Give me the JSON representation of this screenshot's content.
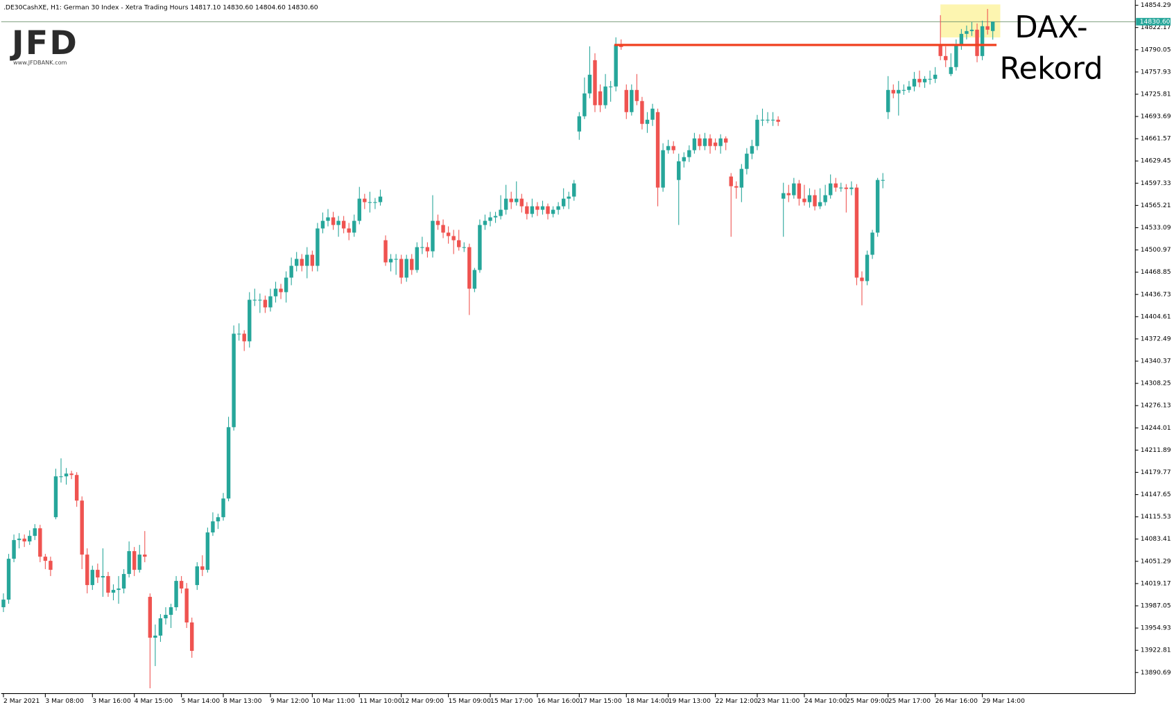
{
  "chart_data": {
    "type": "candlestick",
    "header": ".DE30CashXE, H1:  German 30 Index  - Xetra Trading Hours  14817.10 14830.60 14804.60 14830.60",
    "logo": "JFD",
    "logo_site": "www.JFDBANK.com",
    "annotation": [
      "DAX-",
      "Rekord"
    ],
    "last_price_label": "14830.60",
    "level": 14797,
    "level_color": "#f0401f",
    "highlight_color": "#fdf5b0",
    "up_color": "#26a69a",
    "down_color": "#ef5350",
    "ylim": [
      13860.4,
      14861.9
    ],
    "yticks": [
      14854.29,
      14822.17,
      14790.05,
      14757.93,
      14725.81,
      14693.69,
      14661.57,
      14629.45,
      14597.33,
      14565.21,
      14533.09,
      14500.97,
      14468.85,
      14436.73,
      14404.61,
      14372.49,
      14340.37,
      14308.25,
      14276.13,
      14244.01,
      14211.89,
      14179.77,
      14147.65,
      14115.53,
      14083.41,
      14051.29,
      14019.17,
      13987.05,
      13954.93,
      13922.81,
      13890.69
    ],
    "categories": [
      "2 Mar 2021",
      null,
      null,
      null,
      null,
      null,
      null,
      null,
      "3 Mar 08:00",
      null,
      null,
      null,
      null,
      null,
      null,
      null,
      null,
      "3 Mar 16:00",
      null,
      null,
      null,
      null,
      null,
      null,
      null,
      "4 Mar 15:00",
      null,
      null,
      null,
      null,
      null,
      null,
      null,
      null,
      "5 Mar 14:00",
      null,
      null,
      null,
      null,
      null,
      null,
      null,
      "8 Mar 13:00",
      null,
      null,
      null,
      null,
      null,
      null,
      null,
      null,
      "9 Mar 12:00",
      null,
      null,
      null,
      null,
      null,
      null,
      null,
      "10 Mar 11:00",
      null,
      null,
      null,
      null,
      null,
      null,
      null,
      null,
      "11 Mar 10:00",
      null,
      null,
      null,
      null,
      null,
      null,
      null,
      "12 Mar 09:00",
      null,
      null,
      null,
      null,
      null,
      null,
      null,
      null,
      "15 Mar 09:00",
      null,
      null,
      null,
      null,
      null,
      null,
      null,
      "15 Mar 17:00",
      null,
      null,
      null,
      null,
      null,
      null,
      null,
      null,
      "16 Mar 16:00",
      null,
      null,
      null,
      null,
      null,
      null,
      null,
      "17 Mar 15:00",
      null,
      null,
      null,
      null,
      null,
      null,
      null,
      null,
      "18 Mar 14:00",
      null,
      null,
      null,
      null,
      null,
      null,
      null,
      "19 Mar 13:00",
      null,
      null,
      null,
      null,
      null,
      null,
      null,
      null,
      "22 Mar 12:00",
      null,
      null,
      null,
      null,
      null,
      null,
      null,
      "23 Mar 11:00",
      null,
      null,
      null,
      null,
      null,
      null,
      null,
      null,
      "24 Mar 10:00",
      null,
      null,
      null,
      null,
      null,
      null,
      null,
      "25 Mar 09:00",
      null,
      null,
      null,
      null,
      null,
      null,
      null,
      "25 Mar 17:00",
      null,
      null,
      null,
      null,
      null,
      null,
      null,
      null,
      "26 Mar 16:00",
      null,
      null,
      null,
      null,
      null,
      null,
      null,
      null,
      "29 Mar 14:00",
      null,
      null
    ],
    "ohlc": [
      [
        13985,
        14005,
        13978,
        13996
      ],
      [
        13996,
        14062,
        13990,
        14055
      ],
      [
        14055,
        14090,
        14050,
        14082
      ],
      [
        14082,
        14092,
        14070,
        14084
      ],
      [
        14084,
        14090,
        14072,
        14080
      ],
      [
        14080,
        14096,
        14075,
        14088
      ],
      [
        14088,
        14105,
        14082,
        14099
      ],
      [
        14099,
        14104,
        14050,
        14058
      ],
      [
        14058,
        14062,
        14040,
        14052
      ],
      [
        14052,
        14058,
        14030,
        14039
      ],
      [
        14115,
        14185,
        14112,
        14174
      ],
      [
        14174,
        14200,
        14165,
        14174
      ],
      [
        14174,
        14186,
        14162,
        14178
      ],
      [
        14178,
        14182,
        14170,
        14176
      ],
      [
        14176,
        14180,
        14130,
        14139
      ],
      [
        14139,
        14145,
        14040,
        14061
      ],
      [
        14061,
        14070,
        14005,
        14017
      ],
      [
        14017,
        14045,
        14010,
        14039
      ],
      [
        14039,
        14048,
        14020,
        14028
      ],
      [
        14028,
        14070,
        14000,
        14030
      ],
      [
        14030,
        14036,
        14000,
        14006
      ],
      [
        14006,
        14018,
        13995,
        14010
      ],
      [
        14010,
        14030,
        13990,
        14012
      ],
      [
        14012,
        14040,
        14005,
        14033
      ],
      [
        14033,
        14080,
        14028,
        14066
      ],
      [
        14066,
        14072,
        14030,
        14039
      ],
      [
        14039,
        14075,
        14035,
        14061
      ],
      [
        14061,
        14095,
        14050,
        14058
      ],
      [
        14000,
        14005,
        13868,
        13941
      ],
      [
        13941,
        13960,
        13900,
        13944
      ],
      [
        13944,
        13975,
        13935,
        13969
      ],
      [
        13969,
        13985,
        13960,
        13974
      ],
      [
        13974,
        13990,
        13955,
        13985
      ],
      [
        13985,
        14030,
        13980,
        14023
      ],
      [
        14023,
        14030,
        14005,
        14012
      ],
      [
        14012,
        14020,
        13955,
        13963
      ],
      [
        13963,
        13970,
        13912,
        13922
      ],
      [
        14017,
        14050,
        14010,
        14044
      ],
      [
        14044,
        14060,
        14030,
        14039
      ],
      [
        14039,
        14100,
        14035,
        14093
      ],
      [
        14093,
        14122,
        14088,
        14109
      ],
      [
        14109,
        14120,
        14098,
        14115
      ],
      [
        14115,
        14150,
        14110,
        14142
      ],
      [
        14142,
        14260,
        14138,
        14245
      ],
      [
        14245,
        14392,
        14240,
        14380
      ],
      [
        14380,
        14395,
        14370,
        14380
      ],
      [
        14380,
        14385,
        14355,
        14369
      ],
      [
        14369,
        14440,
        14360,
        14429
      ],
      [
        14429,
        14445,
        14420,
        14429
      ],
      [
        14429,
        14438,
        14410,
        14429
      ],
      [
        14429,
        14435,
        14410,
        14418
      ],
      [
        14418,
        14445,
        14412,
        14434
      ],
      [
        14434,
        14455,
        14425,
        14445
      ],
      [
        14445,
        14452,
        14430,
        14440
      ],
      [
        14440,
        14470,
        14425,
        14461
      ],
      [
        14461,
        14490,
        14450,
        14478
      ],
      [
        14478,
        14498,
        14470,
        14488
      ],
      [
        14488,
        14495,
        14470,
        14478
      ],
      [
        14478,
        14505,
        14460,
        14494
      ],
      [
        14494,
        14500,
        14470,
        14478
      ],
      [
        14478,
        14540,
        14470,
        14532
      ],
      [
        14532,
        14555,
        14525,
        14543
      ],
      [
        14543,
        14560,
        14535,
        14548
      ],
      [
        14548,
        14556,
        14530,
        14537
      ],
      [
        14537,
        14550,
        14520,
        14543
      ],
      [
        14543,
        14550,
        14525,
        14532
      ],
      [
        14532,
        14540,
        14515,
        14526
      ],
      [
        14526,
        14552,
        14520,
        14543
      ],
      [
        14543,
        14592,
        14538,
        14575
      ],
      [
        14575,
        14582,
        14560,
        14570
      ],
      [
        14570,
        14585,
        14555,
        14570
      ],
      [
        14570,
        14576,
        14560,
        14570
      ],
      [
        14570,
        14588,
        14565,
        14578
      ],
      [
        14515,
        14522,
        14478,
        14483
      ],
      [
        14483,
        14495,
        14470,
        14488
      ],
      [
        14488,
        14495,
        14465,
        14488
      ],
      [
        14488,
        14494,
        14452,
        14461
      ],
      [
        14461,
        14494,
        14455,
        14488
      ],
      [
        14488,
        14495,
        14465,
        14472
      ],
      [
        14472,
        14512,
        14468,
        14505
      ],
      [
        14505,
        14520,
        14495,
        14505
      ],
      [
        14505,
        14512,
        14490,
        14499
      ],
      [
        14499,
        14580,
        14490,
        14543
      ],
      [
        14543,
        14552,
        14530,
        14537
      ],
      [
        14537,
        14545,
        14518,
        14526
      ],
      [
        14526,
        14535,
        14510,
        14521
      ],
      [
        14521,
        14530,
        14495,
        14515
      ],
      [
        14515,
        14530,
        14500,
        14505
      ],
      [
        14505,
        14512,
        14498,
        14505
      ],
      [
        14505,
        14510,
        14407,
        14445
      ],
      [
        14445,
        14475,
        14440,
        14472
      ],
      [
        14472,
        14545,
        14468,
        14537
      ],
      [
        14537,
        14552,
        14530,
        14543
      ],
      [
        14543,
        14556,
        14535,
        14548
      ],
      [
        14548,
        14556,
        14540,
        14550
      ],
      [
        14550,
        14580,
        14545,
        14559
      ],
      [
        14559,
        14595,
        14552,
        14575
      ],
      [
        14575,
        14585,
        14560,
        14570
      ],
      [
        14570,
        14600,
        14565,
        14575
      ],
      [
        14575,
        14582,
        14555,
        14564
      ],
      [
        14564,
        14570,
        14545,
        14553
      ],
      [
        14553,
        14575,
        14548,
        14564
      ],
      [
        14564,
        14570,
        14550,
        14559
      ],
      [
        14559,
        14572,
        14552,
        14564
      ],
      [
        14564,
        14568,
        14545,
        14553
      ],
      [
        14553,
        14564,
        14548,
        14559
      ],
      [
        14559,
        14570,
        14552,
        14564
      ],
      [
        14564,
        14590,
        14560,
        14575
      ],
      [
        14575,
        14585,
        14560,
        14578
      ],
      [
        14578,
        14602,
        14572,
        14597
      ],
      [
        14672,
        14700,
        14660,
        14694
      ],
      [
        14694,
        14750,
        14690,
        14727
      ],
      [
        14727,
        14795,
        14720,
        14754
      ],
      [
        14775,
        14785,
        14700,
        14710
      ],
      [
        14730,
        14740,
        14700,
        14710
      ],
      [
        14710,
        14755,
        14705,
        14737
      ],
      [
        14737,
        14745,
        14715,
        14737
      ],
      [
        14737,
        14808,
        14730,
        14797
      ],
      [
        14797,
        14805,
        14790,
        14794
      ],
      [
        14732,
        14740,
        14690,
        14700
      ],
      [
        14700,
        14740,
        14695,
        14732
      ],
      [
        14732,
        14755,
        14710,
        14716
      ],
      [
        14716,
        14722,
        14675,
        14683
      ],
      [
        14683,
        14700,
        14670,
        14689
      ],
      [
        14689,
        14712,
        14680,
        14705
      ],
      [
        14700,
        14705,
        14564,
        14591
      ],
      [
        14591,
        14655,
        14585,
        14645
      ],
      [
        14645,
        14660,
        14640,
        14651
      ],
      [
        14651,
        14658,
        14640,
        14645
      ],
      [
        14602,
        14640,
        14537,
        14629
      ],
      [
        14629,
        14642,
        14620,
        14635
      ],
      [
        14635,
        14652,
        14628,
        14645
      ],
      [
        14645,
        14670,
        14640,
        14662
      ],
      [
        14662,
        14668,
        14645,
        14651
      ],
      [
        14651,
        14670,
        14645,
        14662
      ],
      [
        14662,
        14668,
        14640,
        14651
      ],
      [
        14656,
        14662,
        14645,
        14651
      ],
      [
        14651,
        14668,
        14640,
        14662
      ],
      [
        14662,
        14665,
        14645,
        14656
      ],
      [
        14607,
        14612,
        14520,
        14593
      ],
      [
        14593,
        14600,
        14575,
        14591
      ],
      [
        14591,
        14625,
        14570,
        14618
      ],
      [
        14618,
        14648,
        14610,
        14640
      ],
      [
        14640,
        14660,
        14632,
        14651
      ],
      [
        14651,
        14696,
        14645,
        14689
      ],
      [
        14689,
        14705,
        14680,
        14689
      ],
      [
        14689,
        14700,
        14684,
        14689
      ],
      [
        14689,
        14700,
        14680,
        14689
      ],
      [
        14689,
        14694,
        14680,
        14686
      ],
      [
        14575,
        14598,
        14520,
        14583
      ],
      [
        14583,
        14595,
        14570,
        14580
      ],
      [
        14580,
        14605,
        14575,
        14597
      ],
      [
        14597,
        14602,
        14565,
        14575
      ],
      [
        14575,
        14595,
        14565,
        14570
      ],
      [
        14570,
        14590,
        14562,
        14580
      ],
      [
        14580,
        14588,
        14558,
        14564
      ],
      [
        14564,
        14590,
        14560,
        14570
      ],
      [
        14570,
        14595,
        14565,
        14580
      ],
      [
        14580,
        14610,
        14575,
        14597
      ],
      [
        14597,
        14605,
        14585,
        14591
      ],
      [
        14591,
        14598,
        14585,
        14591
      ],
      [
        14591,
        14596,
        14555,
        14589
      ],
      [
        14589,
        14600,
        14580,
        14591
      ],
      [
        14591,
        14596,
        14450,
        14461
      ],
      [
        14461,
        14470,
        14421,
        14456
      ],
      [
        14456,
        14500,
        14450,
        14494
      ],
      [
        14494,
        14530,
        14488,
        14526
      ],
      [
        14526,
        14605,
        14520,
        14602
      ],
      [
        14602,
        14612,
        14590,
        14602
      ],
      [
        14700,
        14752,
        14690,
        14732
      ],
      [
        14732,
        14740,
        14720,
        14727
      ],
      [
        14727,
        14745,
        14695,
        14732
      ],
      [
        14732,
        14740,
        14725,
        14732
      ],
      [
        14732,
        14745,
        14728,
        14737
      ],
      [
        14737,
        14758,
        14730,
        14748
      ],
      [
        14748,
        14760,
        14736,
        14743
      ],
      [
        14743,
        14752,
        14735,
        14748
      ],
      [
        14748,
        14760,
        14740,
        14748
      ],
      [
        14748,
        14765,
        14742,
        14754
      ],
      [
        14797,
        14840,
        14775,
        14781
      ],
      [
        14781,
        14795,
        14765,
        14775
      ],
      [
        14755,
        14785,
        14752,
        14765
      ],
      [
        14765,
        14805,
        14760,
        14797
      ],
      [
        14797,
        14820,
        14790,
        14813
      ],
      [
        14813,
        14825,
        14805,
        14817
      ],
      [
        14817,
        14830,
        14810,
        14819
      ],
      [
        14819,
        14828,
        14772,
        14781
      ],
      [
        14781,
        14832,
        14775,
        14824
      ],
      [
        14824,
        14849,
        14812,
        14819
      ],
      [
        14817.1,
        14830.6,
        14804.6,
        14830.6
      ]
    ]
  }
}
